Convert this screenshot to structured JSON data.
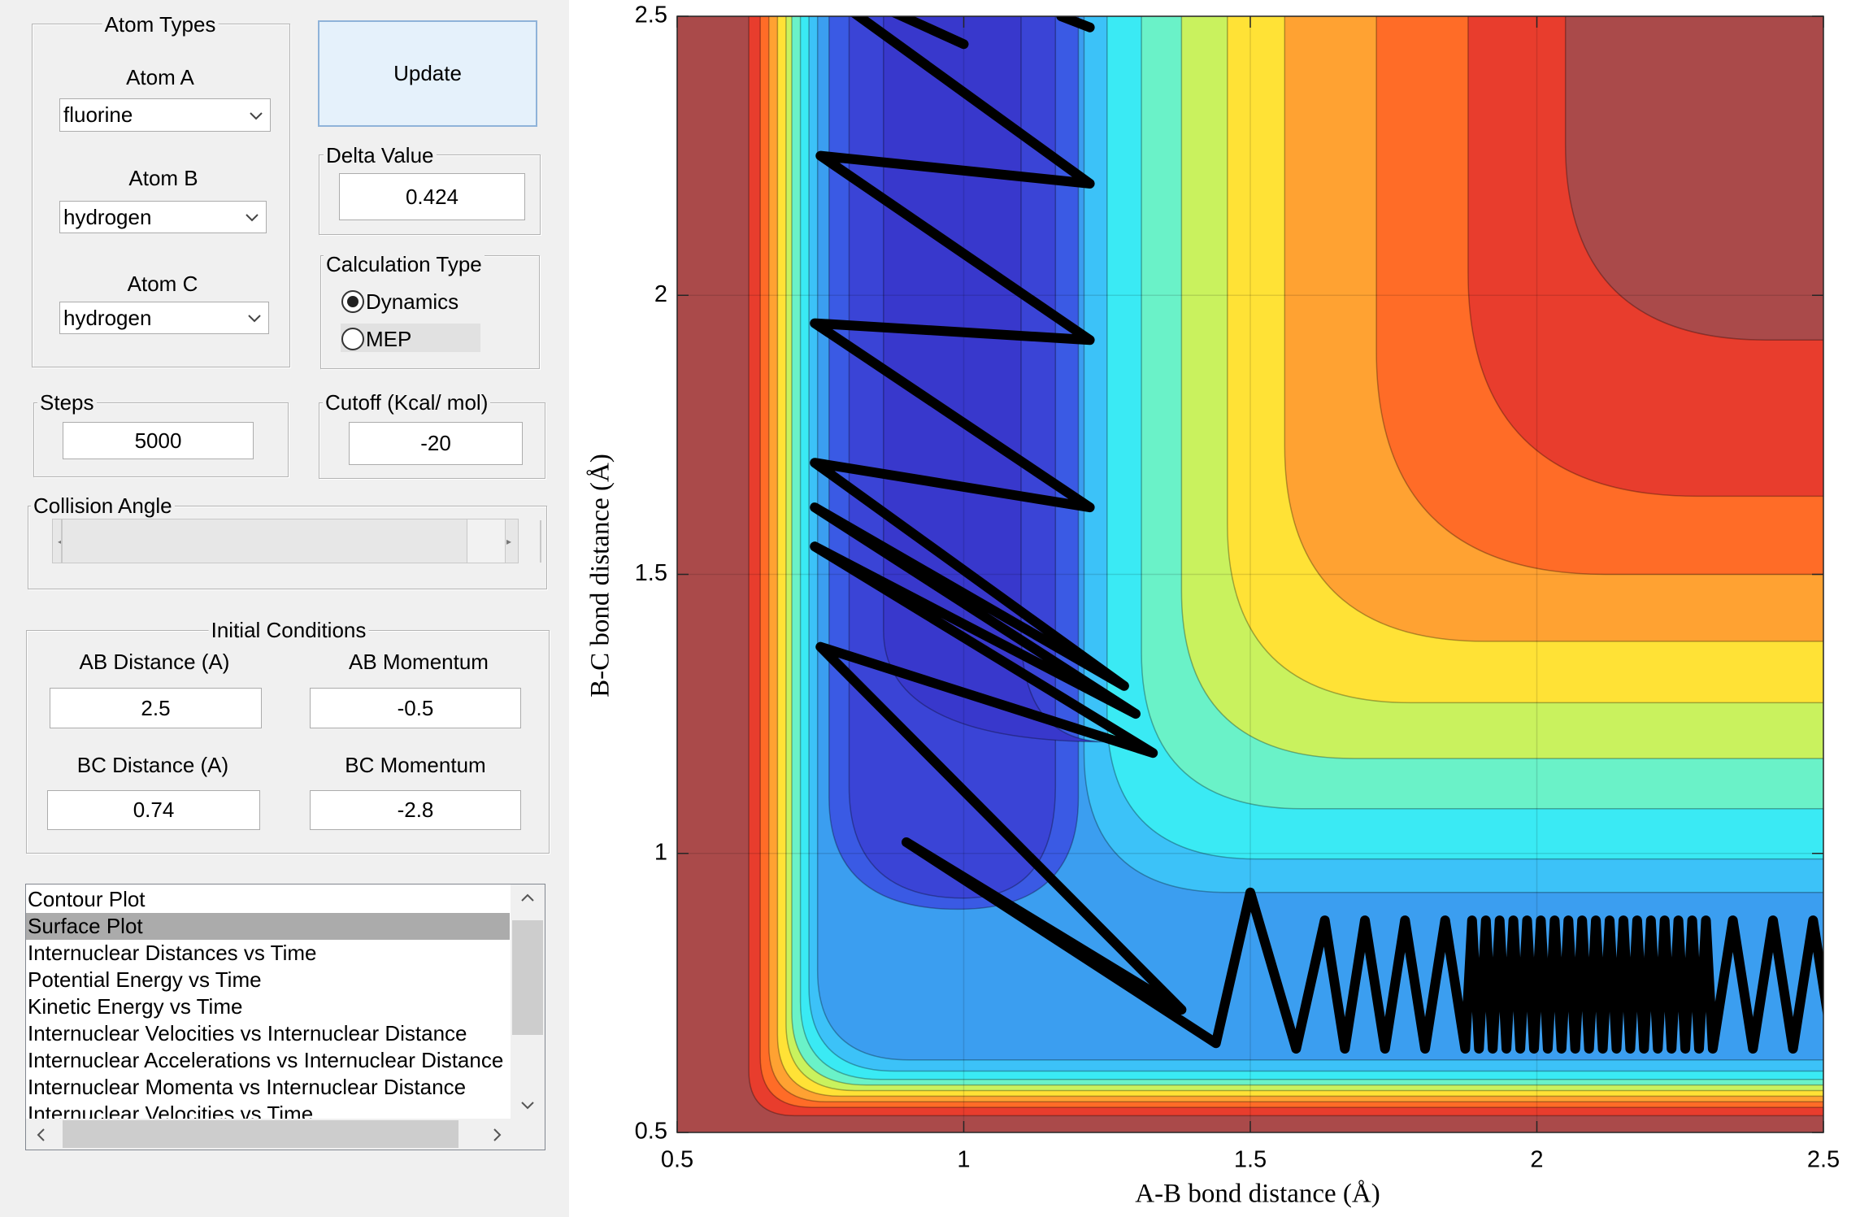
{
  "atom_types": {
    "title": "Atom Types",
    "atom_a": {
      "label": "Atom A",
      "value": "fluorine"
    },
    "atom_b": {
      "label": "Atom B",
      "value": "hydrogen"
    },
    "atom_c": {
      "label": "Atom C",
      "value": "hydrogen"
    }
  },
  "update_button": {
    "label": "Update"
  },
  "delta_value": {
    "label": "Delta Value",
    "value": 0.424
  },
  "calculation_type": {
    "title": "Calculation Type",
    "options": [
      "Dynamics",
      "MEP"
    ],
    "selected": 0
  },
  "steps": {
    "label": "Steps",
    "value": 5000
  },
  "cutoff": {
    "label": "Cutoff (Kcal/ mol)",
    "value": -20
  },
  "collision_angle": {
    "label": "Collision Angle"
  },
  "initial_conditions": {
    "title": "Initial Conditions",
    "ab_distance": {
      "label": "AB Distance (A)",
      "value": 2.5
    },
    "ab_momentum": {
      "label": "AB Momentum",
      "value": -0.5
    },
    "bc_distance": {
      "label": "BC Distance (A)",
      "value": 0.74
    },
    "bc_momentum": {
      "label": "BC Momentum",
      "value": -2.8
    }
  },
  "plot_list": {
    "items": [
      "Contour Plot",
      "Surface Plot",
      "Internuclear Distances vs Time",
      "Potential Energy vs Time",
      "Kinetic Energy vs Time",
      "Internuclear Velocities vs Internuclear Distance",
      "Internuclear Accelerations vs Internuclear Distance",
      "Internuclear Momenta vs Internuclear Distance",
      "Internuclear Velocities vs Time"
    ],
    "selected": 1
  },
  "plot": {
    "xlabel": "A-B bond distance (Å)",
    "ylabel": "B-C bond distance (Å)",
    "xlim": [
      0.5,
      2.5
    ],
    "ylim": [
      0.5,
      2.5
    ],
    "xticks": [
      0.5,
      1,
      1.5,
      2,
      2.5
    ],
    "yticks": [
      0.5,
      1,
      1.5,
      2,
      2.5
    ],
    "grid": true
  }
}
